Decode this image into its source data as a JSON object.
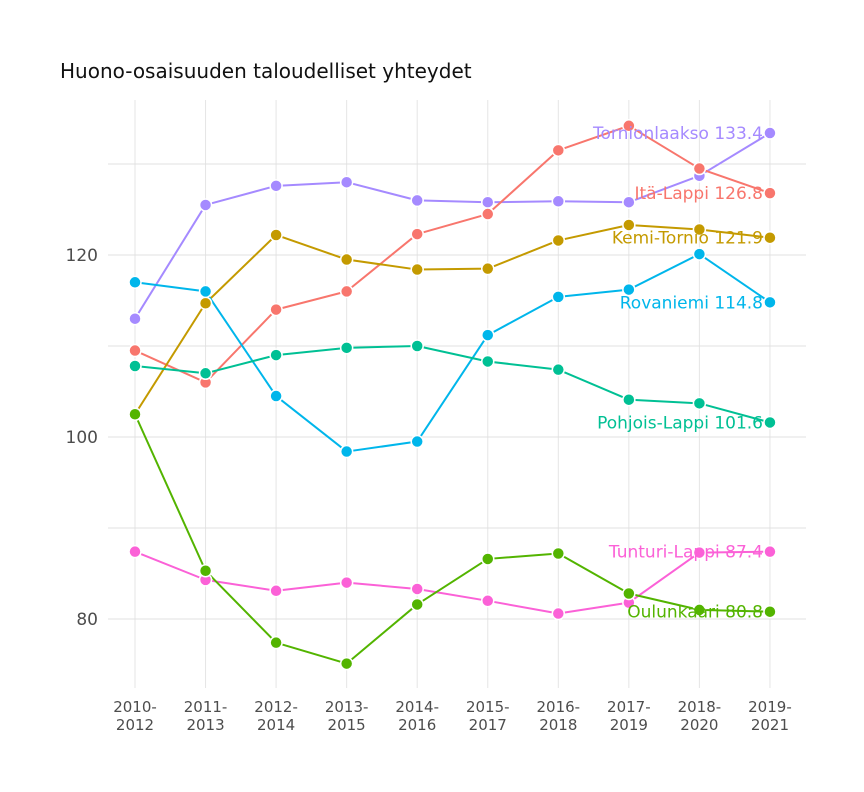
{
  "chart_data": {
    "type": "line",
    "title": "Huono-osaisuuden taloudelliset yhteydet",
    "xlabel": "",
    "ylabel": "",
    "x": [
      "2010-2012",
      "2011-2013",
      "2012-2014",
      "2013-2015",
      "2014-2016",
      "2015-2017",
      "2016-2018",
      "2017-2019",
      "2018-2020",
      "2019-2021"
    ],
    "x_tick_labels": [
      [
        "2010-",
        "2012"
      ],
      [
        "2011-",
        "2013"
      ],
      [
        "2012-",
        "2014"
      ],
      [
        "2013-",
        "2015"
      ],
      [
        "2014-",
        "2016"
      ],
      [
        "2015-",
        "2017"
      ],
      [
        "2016-",
        "2018"
      ],
      [
        "2017-",
        "2019"
      ],
      [
        "2018-",
        "2020"
      ],
      [
        "2019-",
        "2021"
      ]
    ],
    "y_ticks": [
      80,
      100,
      120
    ],
    "ylim": [
      73,
      140
    ],
    "grid": true,
    "legend": "none (labels at line ends)",
    "series": [
      {
        "name": "Tornionlaakso",
        "color": "#A58AFF",
        "label": "Tornionlaakso 133.4",
        "values": [
          113.0,
          125.5,
          127.6,
          128.0,
          126.0,
          125.8,
          125.9,
          125.8,
          128.7,
          133.4
        ]
      },
      {
        "name": "Itä-Lappi",
        "color": "#F8766D",
        "label": "Itä-Lappi 126.8",
        "values": [
          109.5,
          106.0,
          114.0,
          116.0,
          122.3,
          124.5,
          131.5,
          134.2,
          129.5,
          126.8
        ]
      },
      {
        "name": "Kemi-Tornio",
        "color": "#C49A00",
        "label": "Kemi-Tornio 121.9",
        "values": [
          102.5,
          114.7,
          122.2,
          119.5,
          118.4,
          118.5,
          121.6,
          123.3,
          122.8,
          121.9
        ]
      },
      {
        "name": "Rovaniemi",
        "color": "#00B6EB",
        "label": "Rovaniemi 114.8",
        "values": [
          117.0,
          116.0,
          104.5,
          98.4,
          99.5,
          111.2,
          115.4,
          116.2,
          120.1,
          114.8
        ]
      },
      {
        "name": "Pohjois-Lappi",
        "color": "#00C094",
        "label": "Pohjois-Lappi 101.6",
        "values": [
          107.8,
          107.0,
          109.0,
          109.8,
          110.0,
          108.3,
          107.4,
          104.1,
          103.7,
          101.6
        ]
      },
      {
        "name": "Tunturi-Lappi",
        "color": "#FB61D7",
        "label": "Tunturi-Lappi 87.4",
        "values": [
          87.4,
          84.3,
          83.1,
          84.0,
          83.3,
          82.0,
          80.6,
          81.8,
          87.3,
          87.4
        ]
      },
      {
        "name": "Oulunkaari",
        "color": "#53B400",
        "label": "Oulunkaari 80.8",
        "values": [
          102.5,
          85.3,
          77.4,
          75.1,
          81.6,
          86.6,
          87.2,
          82.8,
          81.0,
          80.8
        ]
      }
    ]
  }
}
